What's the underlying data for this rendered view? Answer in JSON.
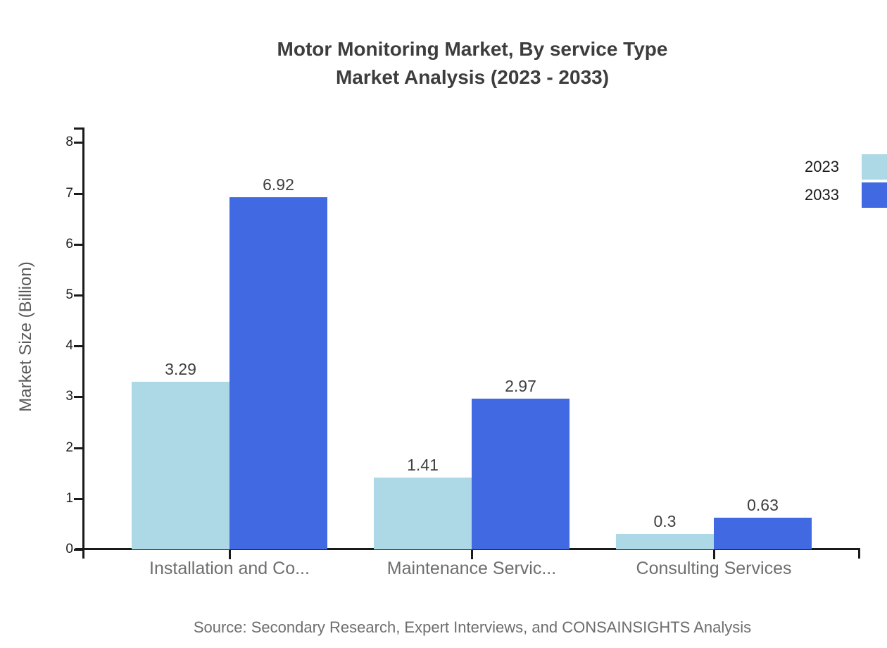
{
  "title": {
    "line1": "Motor Monitoring Market, By service Type",
    "line2": "Market Analysis (2023 - 2033)"
  },
  "legend": [
    {
      "label": "2023",
      "color": "#ADD8E6"
    },
    {
      "label": "2033",
      "color": "#4169E1"
    }
  ],
  "source": "Source: Secondary Research, Expert Interviews, and CONSAINSIGHTS Analysis",
  "chart_data": {
    "type": "bar",
    "title": "Motor Monitoring Market, By service Type Market Analysis (2023 - 2033)",
    "categories": [
      "Installation and Co...",
      "Maintenance Servic...",
      "Consulting Services"
    ],
    "series": [
      {
        "name": "2023",
        "color": "#ADD8E6",
        "values": [
          3.29,
          1.41,
          0.3
        ]
      },
      {
        "name": "2033",
        "color": "#4169E1",
        "values": [
          6.92,
          2.97,
          0.63
        ]
      }
    ],
    "xlabel": "",
    "ylabel": "Market Size (Billion)",
    "ylim": [
      0,
      8
    ],
    "yticks": [
      0,
      1,
      2,
      3,
      4,
      5,
      6,
      7,
      8
    ],
    "grid": false,
    "value_labels": true,
    "legend_position": "top-right",
    "axis_color": "#1a1a1a"
  }
}
